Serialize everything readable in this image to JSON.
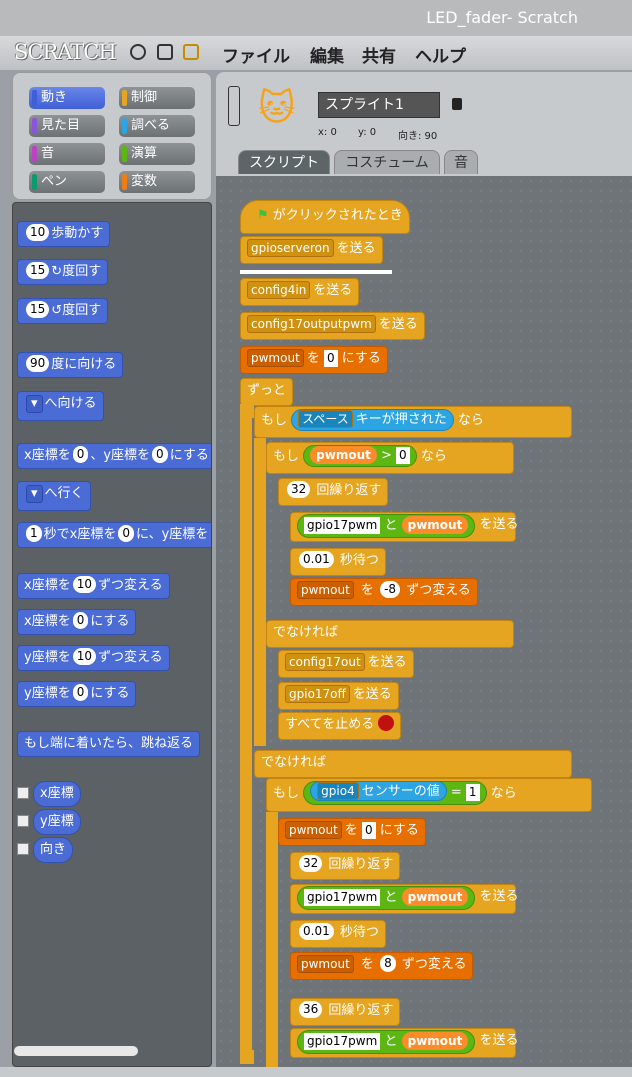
{
  "window": {
    "title": "LED_fader- Scratch"
  },
  "menu": {
    "logo": "SCRATCH",
    "items": [
      "ファイル",
      "編集",
      "共有",
      "ヘルプ"
    ]
  },
  "categories": [
    {
      "label": "動き",
      "color": "#4a6cd4",
      "selected": true
    },
    {
      "label": "制御",
      "color": "#e6a520"
    },
    {
      "label": "見た目",
      "color": "#8a55d7"
    },
    {
      "label": "調べる",
      "color": "#2ca5e2"
    },
    {
      "label": "音",
      "color": "#bb42c3"
    },
    {
      "label": "演算",
      "color": "#5cb712"
    },
    {
      "label": "ペン",
      "color": "#0e9a6c"
    },
    {
      "label": "変数",
      "color": "#ee7d16"
    }
  ],
  "palette": {
    "move": {
      "n": "10",
      "t": "歩動かす"
    },
    "turn_r": {
      "n": "15",
      "t": "度回す"
    },
    "turn_l": {
      "n": "15",
      "t": "度回す"
    },
    "point": {
      "n": "90",
      "t": "度に向ける"
    },
    "toward": {
      "t": "へ向ける"
    },
    "gotoxy": {
      "a": "x座標を",
      "x": "0",
      "b": "、y座標を",
      "y": "0",
      "c": "にする"
    },
    "goto": {
      "t": "へ行く"
    },
    "glide": {
      "n": "1",
      "a": "秒でx座標を",
      "x": "0",
      "b": "に、y座標を"
    },
    "chx": {
      "a": "x座標を",
      "n": "10",
      "b": "ずつ変える"
    },
    "setx": {
      "a": "x座標を",
      "n": "0",
      "b": "にする"
    },
    "chy": {
      "a": "y座標を",
      "n": "10",
      "b": "ずつ変える"
    },
    "sety": {
      "a": "y座標を",
      "n": "0",
      "b": "にする"
    },
    "bounce": "もし端に着いたら、跳ね返る",
    "rep_x": "x座標",
    "rep_y": "y座標",
    "rep_dir": "向き"
  },
  "sprite": {
    "name": "スプライト1",
    "x_label": "x: 0",
    "y_label": "y: 0",
    "dir_label": "向き: 90"
  },
  "tabs": [
    "スクリプト",
    "コスチューム",
    "音"
  ],
  "script": {
    "hat": "がクリックされたとき",
    "send": "を送る",
    "m1": "gpioserveron",
    "m2": "config4in",
    "m3": "config17outputpwm",
    "pwmout": "pwmout",
    "wo": "を",
    "zero": "0",
    "nisuru": "にする",
    "forever": "ずっと",
    "if": "もし",
    "naru": "なら",
    "space": "スペース",
    "keypressed": "キーが押された",
    "gt": ">",
    "repeat": "回繰り返す",
    "n32": "32",
    "n36": "36",
    "gpio17pwm": "gpio17pwm",
    "to": "と",
    "wait": "0.01",
    "waitlbl": "秒待つ",
    "by": "ずつ変える",
    "m8": "-8",
    "p8": "8",
    "else": "でなければ",
    "m4": "config17out",
    "m5": "gpio17off",
    "stopall": "すべてを止める",
    "gpio4": "gpio4",
    "sensor": "センサーの値",
    "eq": "=",
    "one": "1"
  }
}
